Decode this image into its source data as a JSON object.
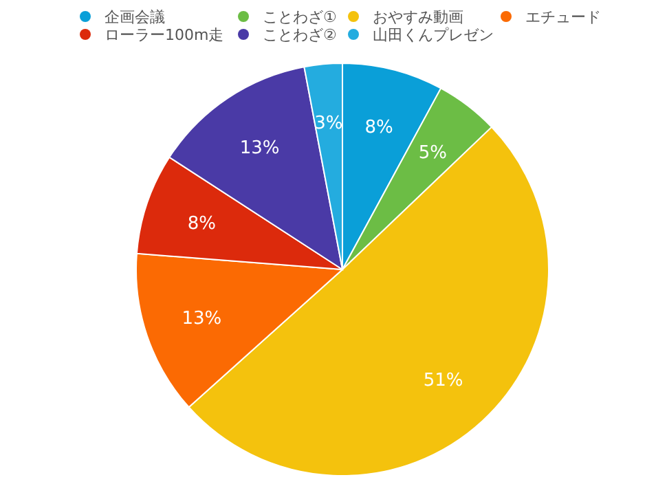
{
  "chart_data": {
    "type": "pie",
    "categories": [
      "企画会議",
      "ことわざ①",
      "おやすみ動画",
      "エチュード",
      "ローラー100m走",
      "ことわざ②",
      "山田くんプレゼン"
    ],
    "values": [
      8,
      5,
      51,
      13,
      8,
      13,
      3
    ],
    "colors": [
      "#0a9fd8",
      "#6cbd45",
      "#f4c20d",
      "#fb6a03",
      "#dc2a0c",
      "#4a3aa6",
      "#24acdf"
    ],
    "value_labels": [
      "8%",
      "5%",
      "51%",
      "13%",
      "8%",
      "13%",
      "3%"
    ],
    "legend": "top"
  }
}
